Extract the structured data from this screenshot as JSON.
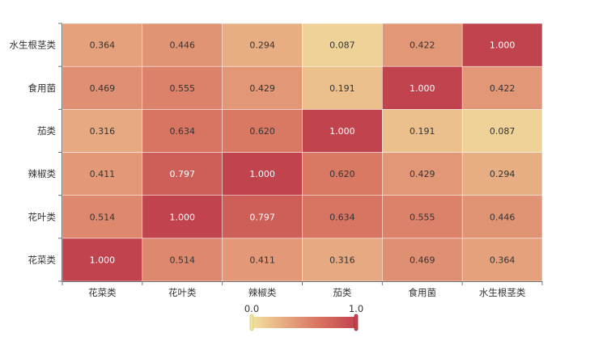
{
  "chart_data": {
    "type": "heatmap",
    "title": "",
    "x_categories": [
      "花菜类",
      "花叶类",
      "辣椒类",
      "茄类",
      "食用菌",
      "水生根茎类"
    ],
    "y_categories": [
      "花菜类",
      "花叶类",
      "辣椒类",
      "茄类",
      "食用菌",
      "水生根茎类"
    ],
    "values": [
      [
        1.0,
        0.514,
        0.411,
        0.316,
        0.469,
        0.364
      ],
      [
        0.514,
        1.0,
        0.797,
        0.634,
        0.555,
        0.446
      ],
      [
        0.411,
        0.797,
        1.0,
        0.62,
        0.429,
        0.294
      ],
      [
        0.316,
        0.634,
        0.62,
        1.0,
        0.191,
        0.087
      ],
      [
        0.469,
        0.555,
        0.429,
        0.191,
        1.0,
        0.422
      ],
      [
        0.364,
        0.446,
        0.294,
        0.087,
        0.422,
        1.0
      ]
    ],
    "value_range": [
      0.0,
      1.0
    ],
    "color_scale": [
      "#f2e29f",
      "#e6a67f",
      "#d7705f",
      "#c1434e"
    ],
    "visual_map": {
      "min_label": "0.0",
      "max_label": "1.0"
    }
  }
}
